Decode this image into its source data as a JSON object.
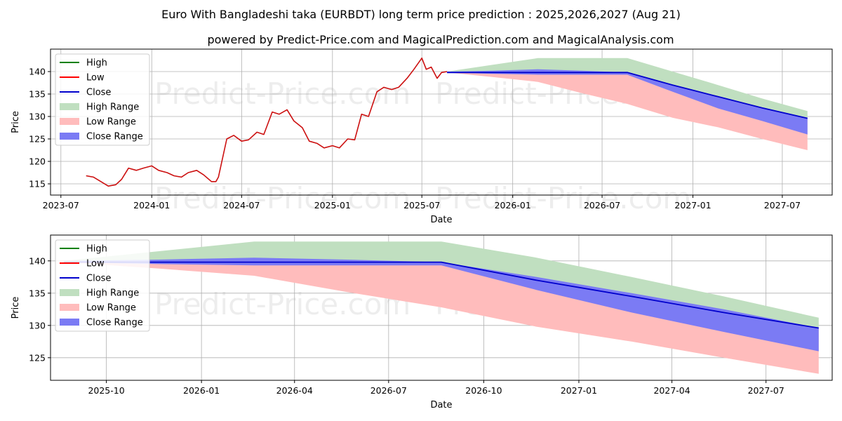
{
  "title": "Euro With Bangladeshi taka (EURBDT) long term price prediction : 2025,2026,2027 (Aug 21)",
  "subtitle": "powered by Predict-Price.com and MagicalPrediction.com and MagicalAnalysis.com",
  "watermark": "Predict-Price.com",
  "colors": {
    "high": "#008000",
    "low": "#ff0000",
    "close": "#0000cc",
    "high_range": "#c0dfc0",
    "low_range": "#ffbcbc",
    "close_range": "#7b7bf4",
    "history": "#cc1010"
  },
  "legend": [
    {
      "key": "high",
      "label": "High"
    },
    {
      "key": "low",
      "label": "Low"
    },
    {
      "key": "close",
      "label": "Close"
    },
    {
      "key": "high_range",
      "label": "High Range"
    },
    {
      "key": "low_range",
      "label": "Low Range"
    },
    {
      "key": "close_range",
      "label": "Close Range"
    }
  ],
  "chart_data": [
    {
      "type": "line",
      "xlabel": "Date",
      "ylabel": "Price",
      "xlim": [
        "2023-06-10",
        "2027-10-10"
      ],
      "ylim": [
        112.5,
        145
      ],
      "xticks": [
        "2023-07",
        "2024-01",
        "2024-07",
        "2025-01",
        "2025-07",
        "2026-01",
        "2026-07",
        "2027-01",
        "2027-07"
      ],
      "yticks": [
        115,
        120,
        125,
        130,
        135,
        140
      ],
      "grid": true,
      "legend_position": "top-left",
      "history": {
        "name": "Low",
        "x": [
          "2023-08-21",
          "2023-09-05",
          "2023-09-20",
          "2023-10-05",
          "2023-10-20",
          "2023-11-01",
          "2023-11-15",
          "2023-12-01",
          "2023-12-15",
          "2024-01-01",
          "2024-01-15",
          "2024-02-01",
          "2024-02-15",
          "2024-03-01",
          "2024-03-15",
          "2024-04-01",
          "2024-04-15",
          "2024-05-01",
          "2024-05-10",
          "2024-05-15",
          "2024-06-01",
          "2024-06-15",
          "2024-07-01",
          "2024-07-15",
          "2024-08-01",
          "2024-08-15",
          "2024-09-01",
          "2024-09-15",
          "2024-10-01",
          "2024-10-15",
          "2024-11-01",
          "2024-11-15",
          "2024-12-01",
          "2024-12-15",
          "2025-01-01",
          "2025-01-15",
          "2025-02-01",
          "2025-02-15",
          "2025-03-01",
          "2025-03-15",
          "2025-04-01",
          "2025-04-15",
          "2025-05-01",
          "2025-05-15",
          "2025-06-01",
          "2025-06-15",
          "2025-07-01",
          "2025-07-10",
          "2025-07-20",
          "2025-08-01",
          "2025-08-10",
          "2025-08-21"
        ],
        "values": [
          116.8,
          116.5,
          115.5,
          114.5,
          114.8,
          116.0,
          118.5,
          118.0,
          118.5,
          119.0,
          118.0,
          117.5,
          116.8,
          116.5,
          117.5,
          118.0,
          117.0,
          115.5,
          115.5,
          116.5,
          125.0,
          125.8,
          124.5,
          124.8,
          126.5,
          126.0,
          131.0,
          130.5,
          131.5,
          129.0,
          127.5,
          124.5,
          124.0,
          123.0,
          123.5,
          123.0,
          125.0,
          124.8,
          130.5,
          130.0,
          135.5,
          136.5,
          136.0,
          136.5,
          138.5,
          140.5,
          143.0,
          140.5,
          141.0,
          138.5,
          139.8,
          140.0
        ]
      },
      "forecast": {
        "x": [
          "2025-08-21",
          "2025-11-21",
          "2026-02-21",
          "2026-05-21",
          "2026-08-21",
          "2026-11-21",
          "2027-02-21",
          "2027-05-21",
          "2027-08-21"
        ],
        "high_range_upper": [
          140.0,
          141.5,
          143.0,
          143.0,
          143.0,
          140.0,
          137.0,
          134.0,
          131.2
        ],
        "close_range_upper": [
          140.0,
          140.2,
          140.5,
          140.2,
          139.8,
          137.0,
          134.5,
          132.0,
          129.6
        ],
        "close": [
          139.8,
          139.8,
          139.8,
          139.8,
          139.8,
          137.0,
          134.4,
          131.9,
          129.6
        ],
        "close_range_lower": [
          139.8,
          139.5,
          139.3,
          139.3,
          139.3,
          135.5,
          131.8,
          129.0,
          126.0
        ],
        "low_range_lower": [
          139.8,
          138.8,
          137.7,
          135.2,
          132.8,
          129.7,
          127.6,
          125.0,
          122.5
        ]
      }
    },
    {
      "type": "line",
      "xlabel": "Date",
      "ylabel": "Price",
      "xlim": [
        "2025-08-08",
        "2027-09-03"
      ],
      "ylim": [
        121.5,
        144
      ],
      "xticks": [
        "2025-10",
        "2026-01",
        "2026-04",
        "2026-07",
        "2026-10",
        "2027-01",
        "2027-04",
        "2027-07"
      ],
      "yticks": [
        125,
        130,
        135,
        140
      ],
      "grid": true,
      "legend_position": "top-left",
      "forecast": {
        "x": [
          "2025-08-21",
          "2025-11-21",
          "2026-02-21",
          "2026-05-21",
          "2026-08-21",
          "2026-11-21",
          "2027-02-21",
          "2027-05-21",
          "2027-08-21"
        ],
        "high_range_upper": [
          140.0,
          141.5,
          143.0,
          143.0,
          143.0,
          140.5,
          137.5,
          134.5,
          131.2
        ],
        "close_range_upper": [
          140.0,
          140.2,
          140.5,
          140.2,
          139.8,
          137.5,
          135.0,
          132.5,
          129.6
        ],
        "close": [
          139.8,
          139.8,
          139.8,
          139.8,
          139.8,
          137.0,
          134.5,
          132.0,
          129.6
        ],
        "close_range_lower": [
          139.8,
          139.5,
          139.3,
          139.3,
          139.3,
          135.5,
          132.0,
          129.0,
          126.0
        ],
        "low_range_lower": [
          139.8,
          138.8,
          137.7,
          135.2,
          132.8,
          129.8,
          127.5,
          125.0,
          122.5
        ]
      }
    }
  ]
}
